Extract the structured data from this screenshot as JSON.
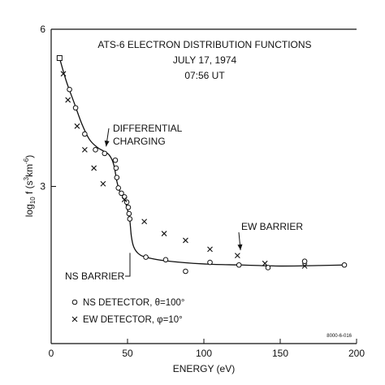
{
  "chart_data": {
    "type": "scatter",
    "title_lines": [
      "ATS-6 ELECTRON DISTRIBUTION FUNCTIONS",
      "JULY 17, 1974",
      "07:56 UT"
    ],
    "xlabel": "ENERGY (eV)",
    "ylabel": {
      "prefix": "log",
      "sub": "10",
      "mid": " f (s",
      "sup1": "3",
      "mid2": "km",
      "sup2": "-6",
      "suffix": ")"
    },
    "xlim": [
      0,
      200
    ],
    "ylim": [
      0,
      6
    ],
    "x_ticks": [
      0,
      50,
      100,
      150,
      200
    ],
    "y_ticks": [
      3,
      6
    ],
    "grid": false,
    "legend_position": "bottom-left",
    "series": [
      {
        "name": "NS DETECTOR, θ=100°",
        "marker": "circle",
        "x": [
          5.5,
          12,
          16,
          22,
          29,
          35,
          42,
          42.5,
          43,
          44,
          46,
          48,
          49.5,
          50.5,
          51,
          51.5,
          62,
          75,
          88,
          104,
          123,
          142,
          166,
          192
        ],
        "y": [
          5.45,
          4.85,
          4.5,
          4.0,
          3.7,
          3.63,
          3.5,
          3.35,
          3.17,
          2.97,
          2.87,
          2.8,
          2.7,
          2.6,
          2.48,
          2.38,
          1.65,
          1.6,
          1.38,
          1.55,
          1.5,
          1.45,
          1.57,
          1.5
        ]
      },
      {
        "name": "EW DETECTOR, φ=10°",
        "marker": "x",
        "x": [
          8,
          11,
          17,
          22,
          28,
          34,
          48,
          61,
          74,
          88,
          104,
          122,
          140,
          166
        ],
        "y": [
          5.15,
          4.65,
          4.15,
          3.7,
          3.35,
          3.05,
          2.75,
          2.33,
          2.1,
          1.97,
          1.8,
          1.68,
          1.53,
          1.48
        ]
      }
    ],
    "fit_curve": {
      "x": [
        5.5,
        10,
        15,
        20,
        25,
        30,
        34,
        36,
        38,
        40,
        41.5,
        43,
        45,
        48,
        50,
        51.5,
        52.5,
        54,
        57,
        62,
        75,
        100,
        125,
        150,
        175,
        192
      ],
      "y": [
        5.45,
        5.0,
        4.6,
        4.2,
        3.9,
        3.75,
        3.68,
        3.65,
        3.6,
        3.5,
        3.35,
        3.1,
        2.9,
        2.75,
        2.55,
        2.35,
        2.05,
        1.85,
        1.72,
        1.65,
        1.58,
        1.52,
        1.5,
        1.48,
        1.49,
        1.5
      ]
    },
    "annotations": [
      {
        "lines": [
          "DIFFERENTIAL",
          "CHARGING"
        ],
        "target": [
          36,
          3.7
        ]
      },
      {
        "lines": [
          "EW BARRIER"
        ],
        "target": [
          124,
          1.72
        ]
      },
      {
        "lines": [
          "NS BARRIER"
        ],
        "target": [
          52,
          2.35
        ]
      }
    ],
    "figure_code": "8000-6-016"
  }
}
